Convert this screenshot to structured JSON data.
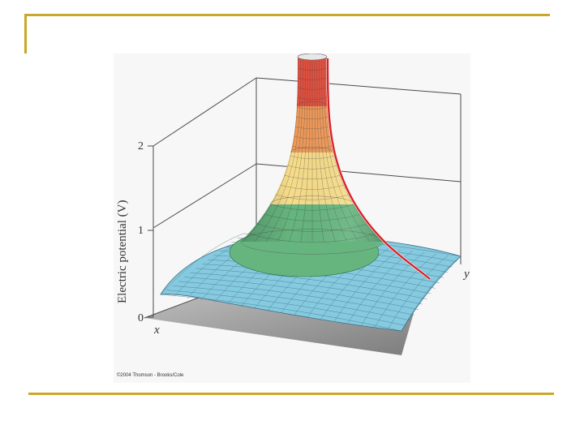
{
  "figure": {
    "y_axis_label": "Electric potential (V)",
    "z_ticks": [
      "2",
      "1",
      "0"
    ],
    "x_axis_label": "x",
    "y_axis_label_right": "y",
    "credit": "©2004 Thomson - Brooks/Cole",
    "colors": {
      "red": "#e4503f",
      "orange": "#ef9a5a",
      "yellow": "#f6dc8a",
      "green": "#66b57f",
      "cyan": "#86cadf",
      "grid_line": "#3d6f86",
      "red_curve": "#d8232a",
      "floor": "#9a9a9a",
      "accent": "#c8a82a"
    }
  }
}
